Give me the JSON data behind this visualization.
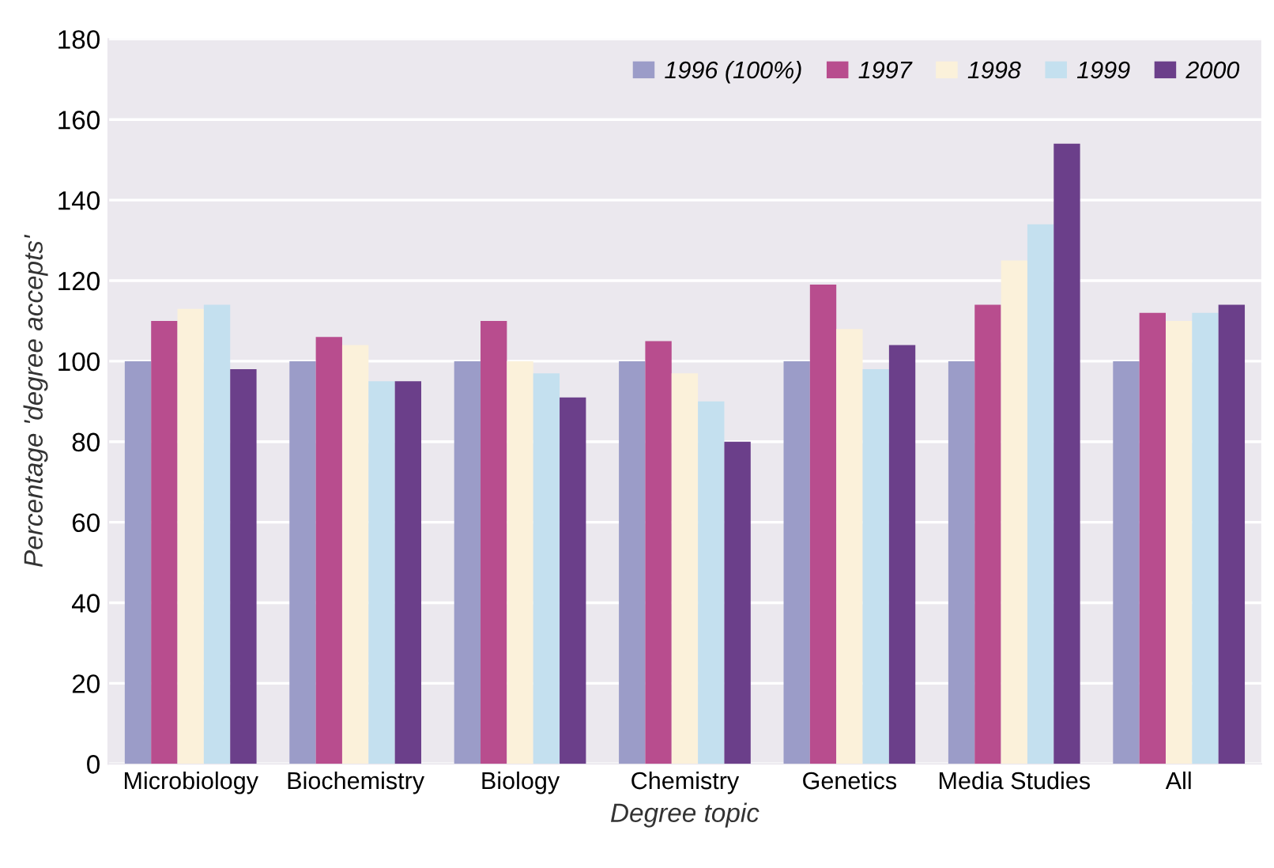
{
  "chart_data": {
    "type": "bar",
    "xlabel": "Degree topic",
    "ylabel": "Percentage 'degree accepts'",
    "categories": [
      "Microbiology",
      "Biochemistry",
      "Biology",
      "Chemistry",
      "Genetics",
      "Media Studies",
      "All"
    ],
    "series": [
      {
        "name": "1996 (100%)",
        "color": "#9b9cc8",
        "values": [
          100,
          100,
          100,
          100,
          100,
          100,
          100
        ]
      },
      {
        "name": "1997",
        "color": "#b84d8e",
        "values": [
          110,
          106,
          110,
          105,
          119,
          114,
          112
        ]
      },
      {
        "name": "1998",
        "color": "#fbf1da",
        "values": [
          113,
          104,
          100,
          97,
          108,
          125,
          110
        ]
      },
      {
        "name": "1999",
        "color": "#c4e0ef",
        "values": [
          114,
          95,
          97,
          90,
          98,
          134,
          112
        ]
      },
      {
        "name": "2000",
        "color": "#6b3f8a",
        "values": [
          98,
          95,
          91,
          80,
          104,
          154,
          114
        ]
      }
    ],
    "ylim": [
      0,
      180
    ],
    "yticks": [
      0,
      20,
      40,
      60,
      80,
      100,
      120,
      140,
      160,
      180
    ],
    "grid": "y",
    "legend": "top right"
  }
}
